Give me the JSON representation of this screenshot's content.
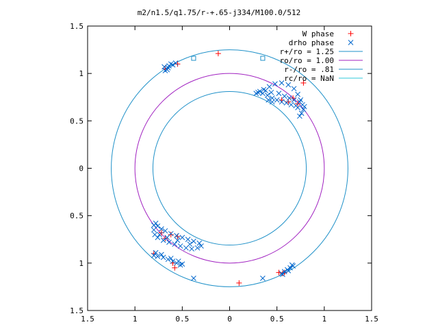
{
  "chart_data": {
    "type": "scatter",
    "title": "m2/n1.5/q1.75/r-+.65-j334/M100.0/512",
    "xlabel": "",
    "ylabel": "",
    "xlim": [
      -1.5,
      1.5
    ],
    "ylim": [
      -1.5,
      1.5
    ],
    "x_ticks": [
      -1.5,
      -1,
      -0.5,
      0,
      0.5,
      1,
      1.5
    ],
    "y_ticks": [
      -1.5,
      -1,
      -0.5,
      0,
      0.5,
      1,
      1.5
    ],
    "x_tick_labels": [
      "1.5",
      "1",
      "0.5",
      "0",
      "0.5",
      "1",
      "1.5"
    ],
    "y_tick_labels": [
      "1.5",
      "1",
      "0.5",
      "0",
      "0.5",
      "1",
      "1.5"
    ],
    "grid": false,
    "legend_position": "top-right",
    "series": [
      {
        "name": "W phase",
        "kind": "points",
        "marker": "plus",
        "color": "#ff0000",
        "points": [
          [
            -0.12,
            1.21
          ],
          [
            -0.55,
            1.1
          ],
          [
            -0.68,
            1.05
          ],
          [
            0.72,
            0.68
          ],
          [
            0.62,
            0.7
          ],
          [
            0.55,
            0.72
          ],
          [
            0.67,
            0.74
          ],
          [
            0.78,
            0.9
          ],
          [
            -0.72,
            -0.68
          ],
          [
            -0.62,
            -0.7
          ],
          [
            -0.55,
            -0.72
          ],
          [
            -0.68,
            -0.74
          ],
          [
            -0.8,
            -0.9
          ],
          [
            -0.6,
            -1.0
          ],
          [
            -0.58,
            -1.05
          ],
          [
            0.1,
            -1.21
          ],
          [
            0.52,
            -1.1
          ],
          [
            0.56,
            -1.11
          ],
          [
            0.58,
            -1.1
          ]
        ]
      },
      {
        "name": "drho phase",
        "kind": "points",
        "marker": "cross",
        "color": "#0066cc",
        "points": [
          [
            -0.65,
            1.06
          ],
          [
            -0.68,
            1.03
          ],
          [
            -0.69,
            1.07
          ],
          [
            -0.62,
            1.1
          ],
          [
            -0.57,
            1.11
          ],
          [
            -0.6,
            1.09
          ],
          [
            -0.66,
            1.04
          ],
          [
            -0.64,
            1.08
          ],
          [
            0.3,
            0.8
          ],
          [
            0.35,
            0.79
          ],
          [
            0.4,
            0.77
          ],
          [
            0.45,
            0.74
          ],
          [
            0.5,
            0.72
          ],
          [
            0.55,
            0.7
          ],
          [
            0.6,
            0.69
          ],
          [
            0.65,
            0.67
          ],
          [
            0.7,
            0.66
          ],
          [
            0.72,
            0.64
          ],
          [
            0.38,
            0.82
          ],
          [
            0.44,
            0.8
          ],
          [
            0.52,
            0.79
          ],
          [
            0.58,
            0.76
          ],
          [
            0.63,
            0.74
          ],
          [
            0.68,
            0.72
          ],
          [
            0.74,
            0.7
          ],
          [
            0.77,
            0.67
          ],
          [
            0.78,
            0.62
          ],
          [
            0.76,
            0.58
          ],
          [
            0.74,
            0.55
          ],
          [
            0.79,
            0.65
          ],
          [
            0.75,
            0.72
          ],
          [
            0.72,
            0.78
          ],
          [
            0.68,
            0.84
          ],
          [
            0.62,
            0.88
          ],
          [
            0.55,
            0.9
          ],
          [
            0.48,
            0.89
          ],
          [
            0.42,
            0.86
          ],
          [
            0.36,
            0.83
          ],
          [
            0.32,
            0.81
          ],
          [
            0.28,
            0.79
          ],
          [
            0.41,
            0.72
          ],
          [
            0.45,
            0.7
          ],
          [
            -0.8,
            -0.6
          ],
          [
            -0.8,
            -0.65
          ],
          [
            -0.79,
            -0.7
          ],
          [
            -0.76,
            -0.73
          ],
          [
            -0.7,
            -0.76
          ],
          [
            -0.64,
            -0.78
          ],
          [
            -0.58,
            -0.8
          ],
          [
            -0.52,
            -0.82
          ],
          [
            -0.46,
            -0.84
          ],
          [
            -0.4,
            -0.85
          ],
          [
            -0.34,
            -0.84
          ],
          [
            -0.3,
            -0.82
          ],
          [
            -0.32,
            -0.79
          ],
          [
            -0.38,
            -0.77
          ],
          [
            -0.44,
            -0.75
          ],
          [
            -0.5,
            -0.73
          ],
          [
            -0.56,
            -0.71
          ],
          [
            -0.62,
            -0.69
          ],
          [
            -0.68,
            -0.66
          ],
          [
            -0.72,
            -0.64
          ],
          [
            -0.76,
            -0.61
          ],
          [
            -0.78,
            -0.58
          ],
          [
            -0.74,
            -0.7
          ],
          [
            -0.66,
            -0.73
          ],
          [
            -0.55,
            -0.76
          ],
          [
            -0.42,
            -0.8
          ],
          [
            -0.8,
            -0.92
          ],
          [
            -0.76,
            -0.93
          ],
          [
            -0.7,
            -0.94
          ],
          [
            -0.65,
            -0.96
          ],
          [
            -0.6,
            -0.98
          ],
          [
            -0.56,
            -1.0
          ],
          [
            -0.52,
            -1.02
          ],
          [
            -0.5,
            -1.01
          ],
          [
            -0.54,
            -0.98
          ],
          [
            -0.62,
            -0.95
          ],
          [
            -0.72,
            -0.91
          ],
          [
            -0.78,
            -0.89
          ],
          [
            0.55,
            -1.11
          ],
          [
            0.58,
            -1.09
          ],
          [
            0.61,
            -1.07
          ],
          [
            0.64,
            -1.05
          ],
          [
            0.67,
            -1.03
          ],
          [
            0.62,
            -1.08
          ],
          [
            0.56,
            -1.12
          ],
          [
            0.66,
            -1.02
          ],
          [
            -0.38,
            -1.16
          ],
          [
            0.35,
            -1.16
          ]
        ]
      },
      {
        "name": "r+/ro = 1.25",
        "kind": "circle",
        "radius": 1.25,
        "color": "#1e90c8"
      },
      {
        "name": "ro/ro = 1.00",
        "kind": "circle",
        "radius": 1.0,
        "color": "#a020c0"
      },
      {
        "name": "r-/ro = .81",
        "kind": "circle",
        "radius": 0.81,
        "color": "#1e90c8"
      },
      {
        "name": "rc/ro = NaN",
        "kind": "legend_only",
        "color": "#2fc8d8"
      }
    ],
    "squares": [
      [
        -0.38,
        1.16
      ],
      [
        0.35,
        1.16
      ]
    ]
  }
}
